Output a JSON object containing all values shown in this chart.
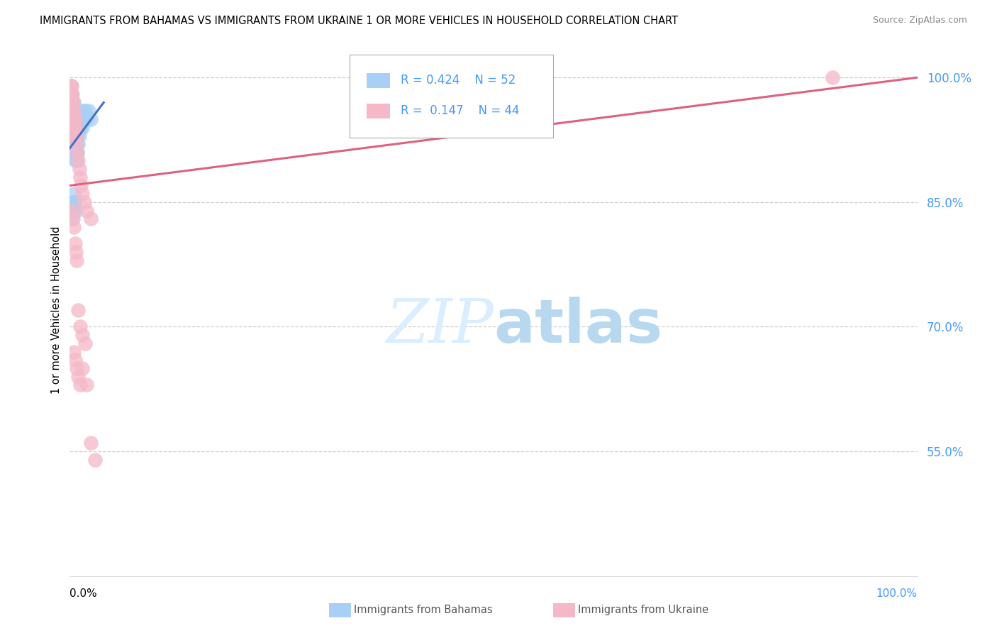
{
  "title": "IMMIGRANTS FROM BAHAMAS VS IMMIGRANTS FROM UKRAINE 1 OR MORE VEHICLES IN HOUSEHOLD CORRELATION CHART",
  "source": "Source: ZipAtlas.com",
  "ylabel": "1 or more Vehicles in Household",
  "xlim": [
    0.0,
    1.0
  ],
  "ylim": [
    0.4,
    1.04
  ],
  "ytick_vals": [
    0.55,
    0.7,
    0.85,
    1.0
  ],
  "ytick_labels": [
    "55.0%",
    "70.0%",
    "85.0%",
    "100.0%"
  ],
  "r_bahamas": 0.424,
  "n_bahamas": 52,
  "r_ukraine": 0.147,
  "n_ukraine": 44,
  "color_bahamas": "#a8cff5",
  "color_ukraine": "#f5b8c8",
  "trendline_bahamas": "#4472c4",
  "trendline_ukraine": "#e06080",
  "tick_color": "#4499ff",
  "grid_color": "#cccccc",
  "watermark_color": "#daeeff",
  "bahamas_x": [
    0.001,
    0.001,
    0.001,
    0.001,
    0.002,
    0.002,
    0.002,
    0.002,
    0.003,
    0.003,
    0.003,
    0.003,
    0.003,
    0.004,
    0.004,
    0.004,
    0.005,
    0.005,
    0.005,
    0.005,
    0.006,
    0.006,
    0.006,
    0.007,
    0.007,
    0.007,
    0.008,
    0.008,
    0.008,
    0.009,
    0.009,
    0.01,
    0.01,
    0.011,
    0.011,
    0.012,
    0.013,
    0.014,
    0.015,
    0.016,
    0.018,
    0.02,
    0.022,
    0.025,
    0.002,
    0.003,
    0.004,
    0.005,
    0.006,
    0.007,
    0.003,
    0.004
  ],
  "bahamas_y": [
    0.97,
    0.96,
    0.98,
    0.99,
    0.96,
    0.97,
    0.98,
    0.95,
    0.93,
    0.94,
    0.95,
    0.96,
    0.97,
    0.92,
    0.94,
    0.96,
    0.91,
    0.93,
    0.95,
    0.97,
    0.9,
    0.92,
    0.94,
    0.91,
    0.93,
    0.95,
    0.9,
    0.92,
    0.94,
    0.91,
    0.93,
    0.92,
    0.94,
    0.93,
    0.95,
    0.94,
    0.95,
    0.96,
    0.94,
    0.95,
    0.96,
    0.95,
    0.96,
    0.95,
    0.84,
    0.85,
    0.85,
    0.86,
    0.85,
    0.84,
    0.83,
    0.84
  ],
  "ukraine_x": [
    0.001,
    0.001,
    0.002,
    0.002,
    0.003,
    0.003,
    0.004,
    0.004,
    0.005,
    0.005,
    0.006,
    0.006,
    0.007,
    0.007,
    0.008,
    0.009,
    0.01,
    0.011,
    0.012,
    0.013,
    0.015,
    0.017,
    0.02,
    0.025,
    0.003,
    0.004,
    0.005,
    0.006,
    0.007,
    0.008,
    0.01,
    0.012,
    0.015,
    0.018,
    0.005,
    0.006,
    0.008,
    0.01,
    0.012,
    0.015,
    0.02,
    0.025,
    0.03,
    0.9
  ],
  "ukraine_y": [
    0.99,
    0.98,
    0.99,
    0.97,
    0.98,
    0.96,
    0.97,
    0.95,
    0.96,
    0.94,
    0.95,
    0.93,
    0.94,
    0.92,
    0.93,
    0.91,
    0.9,
    0.89,
    0.88,
    0.87,
    0.86,
    0.85,
    0.84,
    0.83,
    0.84,
    0.83,
    0.82,
    0.8,
    0.79,
    0.78,
    0.72,
    0.7,
    0.69,
    0.68,
    0.67,
    0.66,
    0.65,
    0.64,
    0.63,
    0.65,
    0.63,
    0.56,
    0.54,
    1.0
  ],
  "bah_trend_x0": 0.0,
  "bah_trend_y0": 0.915,
  "bah_trend_x1": 0.04,
  "bah_trend_y1": 0.97,
  "ukr_trend_x0": 0.0,
  "ukr_trend_y0": 0.87,
  "ukr_trend_x1": 1.0,
  "ukr_trend_y1": 1.0
}
